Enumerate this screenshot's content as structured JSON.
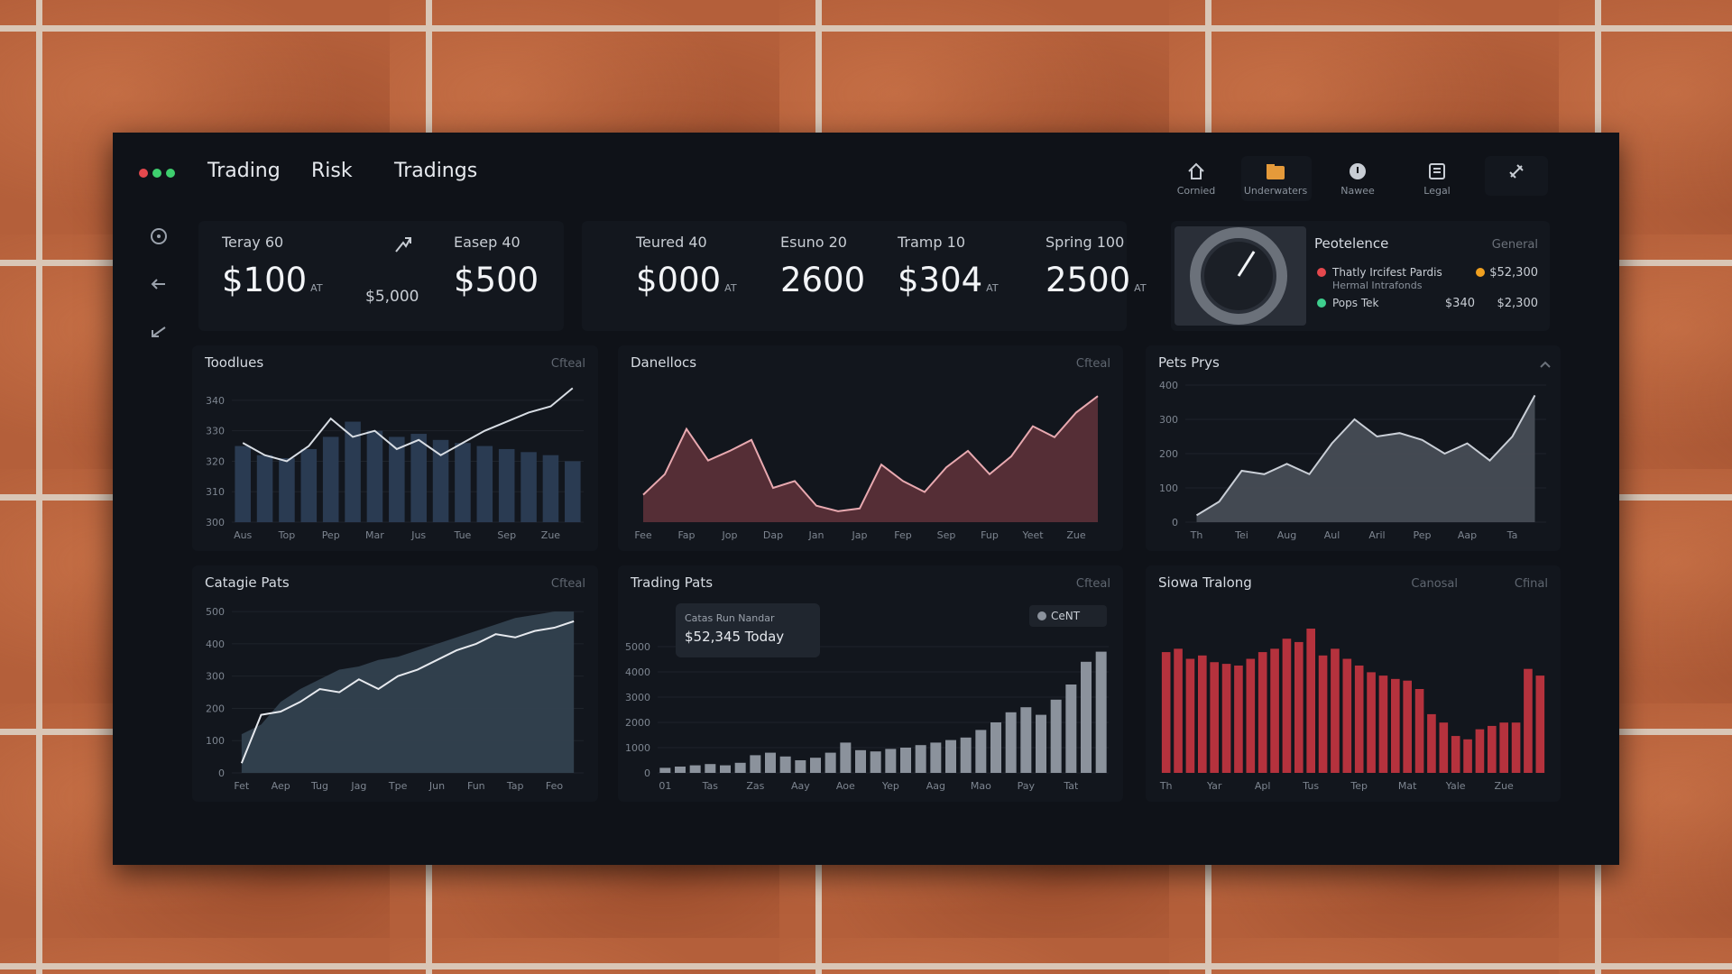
{
  "header": {
    "tabs": [
      "Trading",
      "Risk",
      "Tradings"
    ],
    "tools": [
      "Cornied",
      "Underwaters",
      "Nawee",
      "Legal"
    ]
  },
  "kpis": [
    {
      "label": "Teray 60",
      "value": "$100",
      "unit": "AT"
    },
    {
      "label": "Easep 40",
      "value": "$500"
    },
    {
      "label": "Teured 40",
      "value": "$000",
      "unit": "AT"
    },
    {
      "label": "Esuno 20",
      "value": "2600"
    },
    {
      "label": "Tramp 10",
      "value": "$304",
      "unit": "AT"
    },
    {
      "label": "Spring 100",
      "value": "2500",
      "unit": "AT"
    }
  ],
  "kpi_note": "$5,000",
  "gauge": {
    "title": "Peotelence",
    "link": "General",
    "value": 62,
    "range": [
      0,
      100
    ],
    "items": [
      {
        "label": "Thatly Ircifest Pardis",
        "sub": "Hermal Intrafonds",
        "value": "$52,300",
        "color": "#e5484d",
        "value_color": "#f0a020"
      },
      {
        "label": "Pops Tek",
        "extra": "$340",
        "value": "$2,300",
        "color": "#3ecf8e"
      }
    ]
  },
  "chart_data": [
    {
      "type": "combo",
      "title": "Toodlues",
      "links": [
        "Cfteal"
      ],
      "ylim": [
        300,
        345
      ],
      "yticks": [
        300,
        310,
        320,
        330,
        340
      ],
      "grid": true,
      "categories": [
        "Aus",
        null,
        "Top",
        null,
        "Pep",
        null,
        "Mar",
        null,
        "Jus",
        null,
        "Tue",
        null,
        "Sep",
        null,
        "Zue",
        null
      ],
      "series": [
        {
          "type": "bar",
          "color": "#2a3b52",
          "values": [
            325,
            322,
            321,
            324,
            328,
            333,
            330,
            328,
            329,
            327,
            326,
            325,
            324,
            323,
            322,
            320
          ]
        },
        {
          "type": "line",
          "color": "#d8dde4",
          "values": [
            326,
            322,
            320,
            325,
            334,
            328,
            330,
            324,
            327,
            322,
            326,
            330,
            333,
            336,
            338,
            344
          ]
        }
      ]
    },
    {
      "type": "area",
      "title": "Danellocs",
      "links": [
        "Cfteal"
      ],
      "ylim": [
        0,
        100
      ],
      "categories": [
        "Fee",
        null,
        "Fap",
        null,
        "Jop",
        null,
        "Dap",
        null,
        "Jan",
        null,
        "Jap",
        null,
        "Fep",
        null,
        "Sep",
        null,
        "Fup",
        null,
        "Yeet",
        null,
        "Zue",
        null
      ],
      "series": [
        {
          "color": "#5a2f38",
          "line_color": "#e8a9b0",
          "values": [
            20,
            35,
            68,
            45,
            52,
            60,
            25,
            30,
            12,
            8,
            10,
            42,
            30,
            22,
            40,
            52,
            35,
            48,
            70,
            62,
            80,
            92
          ]
        }
      ]
    },
    {
      "type": "area",
      "title": "Pets Prys",
      "ylim": [
        0,
        400
      ],
      "yticks": [
        0,
        100,
        200,
        300,
        400
      ],
      "grid": true,
      "categories": [
        "Th",
        null,
        "Tei",
        null,
        "Aug",
        null,
        "Aul",
        null,
        "Aril",
        null,
        "Pep",
        null,
        "Aap",
        null,
        "Ta",
        null
      ],
      "series": [
        {
          "color": "#474c55",
          "line_color": "#c9ced6",
          "values": [
            20,
            60,
            150,
            140,
            170,
            140,
            230,
            300,
            250,
            260,
            240,
            200,
            230,
            180,
            250,
            370
          ]
        }
      ]
    },
    {
      "type": "combo",
      "title": "Catagie Pats",
      "links": [
        "Cfteal"
      ],
      "ylim": [
        0,
        520
      ],
      "yticks": [
        0,
        100,
        200,
        300,
        400,
        500
      ],
      "grid": true,
      "categories": [
        "Fet",
        null,
        "Aep",
        null,
        "Tug",
        null,
        "Jag",
        null,
        "Tpe",
        null,
        "Jun",
        null,
        "Fun",
        null,
        "Tap",
        null,
        "Feo",
        null
      ],
      "series": [
        {
          "type": "area",
          "color": "#33414f",
          "values": [
            120,
            150,
            220,
            260,
            290,
            320,
            330,
            350,
            360,
            380,
            400,
            420,
            440,
            460,
            480,
            490,
            500,
            500
          ]
        },
        {
          "type": "line",
          "color": "#e6e9ee",
          "values": [
            30,
            180,
            190,
            220,
            260,
            250,
            290,
            260,
            300,
            320,
            350,
            380,
            400,
            430,
            420,
            440,
            450,
            470
          ]
        }
      ]
    },
    {
      "type": "bar",
      "title": "Trading Pats",
      "links": [
        "Cfteal"
      ],
      "ylim": [
        0,
        5000
      ],
      "yticks": [
        0,
        1000,
        2000,
        3000,
        4000,
        5000
      ],
      "grid": true,
      "tooltip": {
        "title": "Catas Run Nandar",
        "value": "$52,345 Today"
      },
      "chip": "CeNT",
      "categories": [
        "01",
        null,
        null,
        "Tas",
        null,
        null,
        "Zas",
        null,
        null,
        "Aay",
        null,
        null,
        "Aoe",
        null,
        null,
        "Yep",
        null,
        null,
        "Aag",
        null,
        null,
        "Mao",
        null,
        null,
        "Pay",
        null,
        null,
        "Tat",
        null,
        null
      ],
      "series": [
        {
          "color": "#8b929c",
          "values": [
            200,
            250,
            300,
            350,
            300,
            400,
            700,
            800,
            650,
            500,
            600,
            800,
            1200,
            900,
            850,
            950,
            1000,
            1100,
            1200,
            1300,
            1400,
            1700,
            2000,
            2400,
            2600,
            2300,
            2900,
            3500,
            4400,
            4800
          ]
        }
      ]
    },
    {
      "type": "bar",
      "title": "Siowa Tralong",
      "links": [
        "Cfinal",
        "Canosal"
      ],
      "ylim": [
        0,
        100
      ],
      "categories": [
        "Th",
        null,
        null,
        null,
        "Yar",
        null,
        null,
        null,
        "Apl",
        null,
        null,
        null,
        "Tus",
        null,
        null,
        null,
        "Tep",
        null,
        null,
        null,
        "Mat",
        null,
        null,
        null,
        "Yale",
        null,
        null,
        null,
        "Zue",
        null,
        null,
        null
      ],
      "series": [
        {
          "color": "#b5323d",
          "values": [
            72,
            74,
            68,
            70,
            66,
            65,
            64,
            68,
            72,
            74,
            80,
            78,
            86,
            70,
            74,
            68,
            64,
            60,
            58,
            56,
            55,
            50,
            35,
            30,
            22,
            20,
            26,
            28,
            30,
            30,
            62,
            58
          ]
        }
      ]
    }
  ]
}
